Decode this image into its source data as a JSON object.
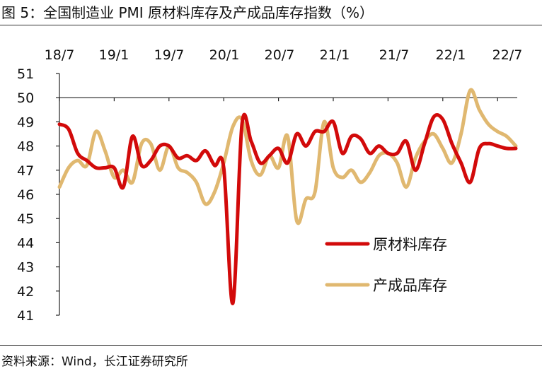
{
  "header": {
    "title": "图 5：全国制造业 PMI 原材料库存及产成品库存指数（%）"
  },
  "footer": {
    "source": "资料来源：Wind，长江证券研究所"
  },
  "colors": {
    "raw_material": "#d20a0a",
    "finished_goods": "#e0b870",
    "axis": "#222222"
  },
  "chart_data": {
    "type": "line",
    "title": "全国制造业 PMI 原材料库存及产成品库存指数（%）",
    "xlabel": "",
    "ylabel": "",
    "x_ticks": [
      "18/7",
      "19/1",
      "19/7",
      "20/1",
      "20/7",
      "21/1",
      "21/7",
      "22/1",
      "22/7"
    ],
    "ylim": [
      41,
      51
    ],
    "y_ticks": [
      41,
      42,
      43,
      44,
      45,
      46,
      47,
      48,
      49,
      50,
      51
    ],
    "grid": false,
    "legend_position": "lower-right",
    "x": [
      "18/7",
      "18/8",
      "18/9",
      "18/10",
      "18/11",
      "18/12",
      "19/1",
      "19/2",
      "19/3",
      "19/4",
      "19/5",
      "19/6",
      "19/7",
      "19/8",
      "19/9",
      "19/10",
      "19/11",
      "19/12",
      "20/1",
      "20/2",
      "20/3",
      "20/4",
      "20/5",
      "20/6",
      "20/7",
      "20/8",
      "20/9",
      "20/10",
      "20/11",
      "20/12",
      "21/1",
      "21/2",
      "21/3",
      "21/4",
      "21/5",
      "21/6",
      "21/7",
      "21/8",
      "21/9",
      "21/10",
      "21/11",
      "21/12",
      "22/1",
      "22/2",
      "22/3",
      "22/4",
      "22/5",
      "22/6",
      "22/7",
      "22/8",
      "22/9"
    ],
    "series": [
      {
        "name": "原材料库存",
        "color": "#d20a0a",
        "values": [
          48.9,
          48.7,
          47.7,
          47.4,
          47.1,
          47.1,
          47.1,
          46.3,
          48.4,
          47.2,
          47.4,
          48.0,
          48.0,
          47.5,
          47.6,
          47.4,
          47.8,
          47.2,
          47.1,
          41.5,
          48.9,
          48.2,
          47.3,
          47.6,
          47.9,
          47.3,
          48.5,
          48.0,
          48.6,
          48.6,
          49.0,
          47.7,
          48.4,
          48.3,
          47.7,
          48.0,
          47.7,
          47.7,
          48.2,
          47.0,
          48.1,
          49.2,
          49.1,
          48.1,
          47.3,
          46.5,
          47.9,
          48.1,
          48.0,
          47.9,
          47.9
        ]
      },
      {
        "name": "产成品库存",
        "color": "#e0b870",
        "values": [
          46.3,
          47.1,
          47.4,
          47.2,
          48.6,
          47.8,
          46.7,
          47.0,
          46.5,
          48.1,
          48.1,
          47.0,
          48.0,
          47.1,
          46.9,
          46.5,
          45.6,
          46.1,
          47.3,
          48.8,
          49.1,
          47.4,
          46.8,
          47.6,
          47.1,
          48.4,
          44.9,
          45.8,
          46.1,
          49.0,
          47.1,
          46.7,
          47.0,
          46.5,
          46.9,
          47.6,
          47.7,
          47.3,
          46.3,
          47.5,
          48.2,
          48.5,
          47.9,
          47.3,
          48.5,
          50.3,
          49.5,
          48.9,
          48.6,
          48.4,
          48.0
        ]
      }
    ]
  }
}
